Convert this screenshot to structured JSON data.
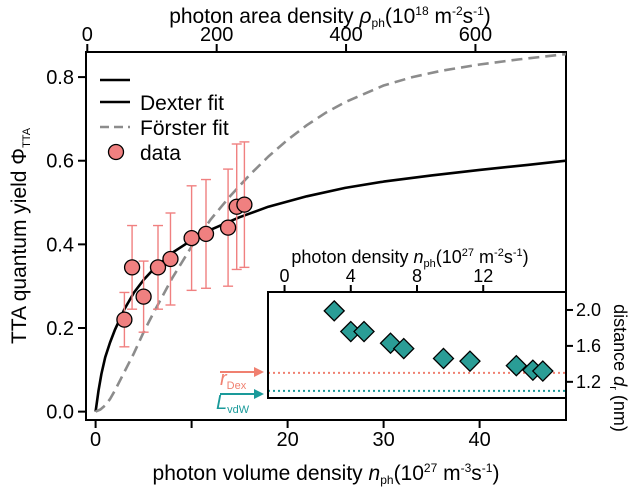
{
  "chart_data": [
    {
      "type": "scatter",
      "xlabel": {
        "main": "photon volume density ",
        "sym": "n",
        "sub": "ph",
        "unit": "(10",
        "exp": "27",
        "unit2": " m",
        "exp2": "-3",
        "unit3": "s",
        "exp3": "-1",
        "close": ")"
      },
      "x2label": {
        "main": "photon area density ",
        "sym": "ρ",
        "sub": "ph",
        "unit": "(10",
        "exp": "18",
        "unit2": " m",
        "exp2": "-2",
        "unit3": "s",
        "exp3": "-1",
        "close": ")"
      },
      "ylabel": {
        "main": "TTA quantum yield ",
        "sym": "Φ",
        "sub": "TTA"
      },
      "xlim": [
        -1,
        49
      ],
      "ylim": [
        -0.02,
        0.86
      ],
      "x2lim": [
        -2,
        740
      ],
      "xticks": [
        0,
        10,
        20,
        30,
        40
      ],
      "xticklabels": [
        "0",
        "",
        "20",
        "30",
        "40"
      ],
      "x2ticks": [
        0,
        200,
        400,
        600
      ],
      "yticks": [
        0.0,
        0.2,
        0.4,
        0.6,
        0.8
      ],
      "yticklabels": [
        "0.0",
        "0.2",
        "0.4",
        "0.6",
        "0.8"
      ],
      "legend": {
        "placement": "top-left",
        "entries": [
          {
            "label": "",
            "style": "solid"
          },
          {
            "label": "Dexter fit",
            "style": "solid"
          },
          {
            "label": "Förster fit",
            "style": "dashed"
          },
          {
            "label": "data",
            "style": "marker"
          }
        ]
      },
      "series": [
        {
          "name": "Dexter fit",
          "style": "solid",
          "color": "#000000",
          "x": [
            0,
            0.3,
            0.6,
            1,
            1.5,
            2,
            3,
            4,
            5,
            6,
            8,
            10,
            12,
            15,
            18,
            22,
            26,
            30,
            35,
            40,
            45,
            49
          ],
          "y": [
            0,
            0.05,
            0.09,
            0.13,
            0.165,
            0.195,
            0.245,
            0.285,
            0.315,
            0.34,
            0.38,
            0.41,
            0.435,
            0.465,
            0.49,
            0.515,
            0.535,
            0.55,
            0.565,
            0.578,
            0.59,
            0.6
          ]
        },
        {
          "name": "Förster fit",
          "style": "dashed",
          "color": "#8c8c8c",
          "x": [
            0,
            0.5,
            1,
            1.5,
            2,
            3,
            4,
            5,
            6,
            8,
            10,
            12,
            14,
            16,
            18,
            20,
            22,
            24,
            26,
            28,
            30,
            33,
            36,
            40,
            44,
            49
          ],
          "y": [
            0,
            0.005,
            0.015,
            0.03,
            0.05,
            0.095,
            0.14,
            0.19,
            0.235,
            0.32,
            0.395,
            0.46,
            0.515,
            0.565,
            0.61,
            0.65,
            0.685,
            0.715,
            0.74,
            0.76,
            0.78,
            0.8,
            0.815,
            0.83,
            0.842,
            0.855
          ]
        },
        {
          "name": "data",
          "style": "marker",
          "color": "#f08080",
          "x": [
            3.0,
            3.8,
            5.0,
            6.5,
            7.8,
            10.0,
            11.5,
            13.8,
            14.7,
            15.5
          ],
          "y": [
            0.22,
            0.345,
            0.275,
            0.345,
            0.365,
            0.415,
            0.425,
            0.44,
            0.49,
            0.495
          ],
          "err": [
            0.065,
            0.1,
            0.085,
            0.1,
            0.11,
            0.125,
            0.13,
            0.14,
            0.15,
            0.15
          ]
        }
      ]
    },
    {
      "type": "scatter",
      "xlabel": {
        "main": "photon density ",
        "sym": "n",
        "sub": "ph",
        "unit": "(10",
        "exp": "27",
        "unit2": " m",
        "exp2": "-2",
        "unit3": "s",
        "exp3": "-1",
        "close": ")"
      },
      "ylabel": {
        "main": "distance ",
        "sym": "d",
        "sub": "r",
        "unit": " (nm)"
      },
      "xlim": [
        -1,
        17
      ],
      "ylim": [
        1.02,
        2.2
      ],
      "xticks": [
        0,
        4,
        8,
        12
      ],
      "yticks": [
        1.2,
        1.6,
        2.0
      ],
      "yticklabels": [
        "1.2",
        "1.6",
        "2.0"
      ],
      "reference_lines": [
        {
          "name": "r",
          "sub": "Dex",
          "value": 1.3,
          "color": "#f08070"
        },
        {
          "name": "L",
          "sub": "vdW",
          "value": 1.1,
          "color": "#1a9a9a"
        }
      ],
      "series": [
        {
          "name": "",
          "style": "marker",
          "color": "#2a9d96",
          "x": [
            3.0,
            4.0,
            4.8,
            6.4,
            7.2,
            9.6,
            11.2,
            14.0,
            15.0,
            15.6
          ],
          "y": [
            1.99,
            1.76,
            1.76,
            1.63,
            1.57,
            1.46,
            1.43,
            1.38,
            1.33,
            1.32
          ]
        }
      ]
    }
  ]
}
